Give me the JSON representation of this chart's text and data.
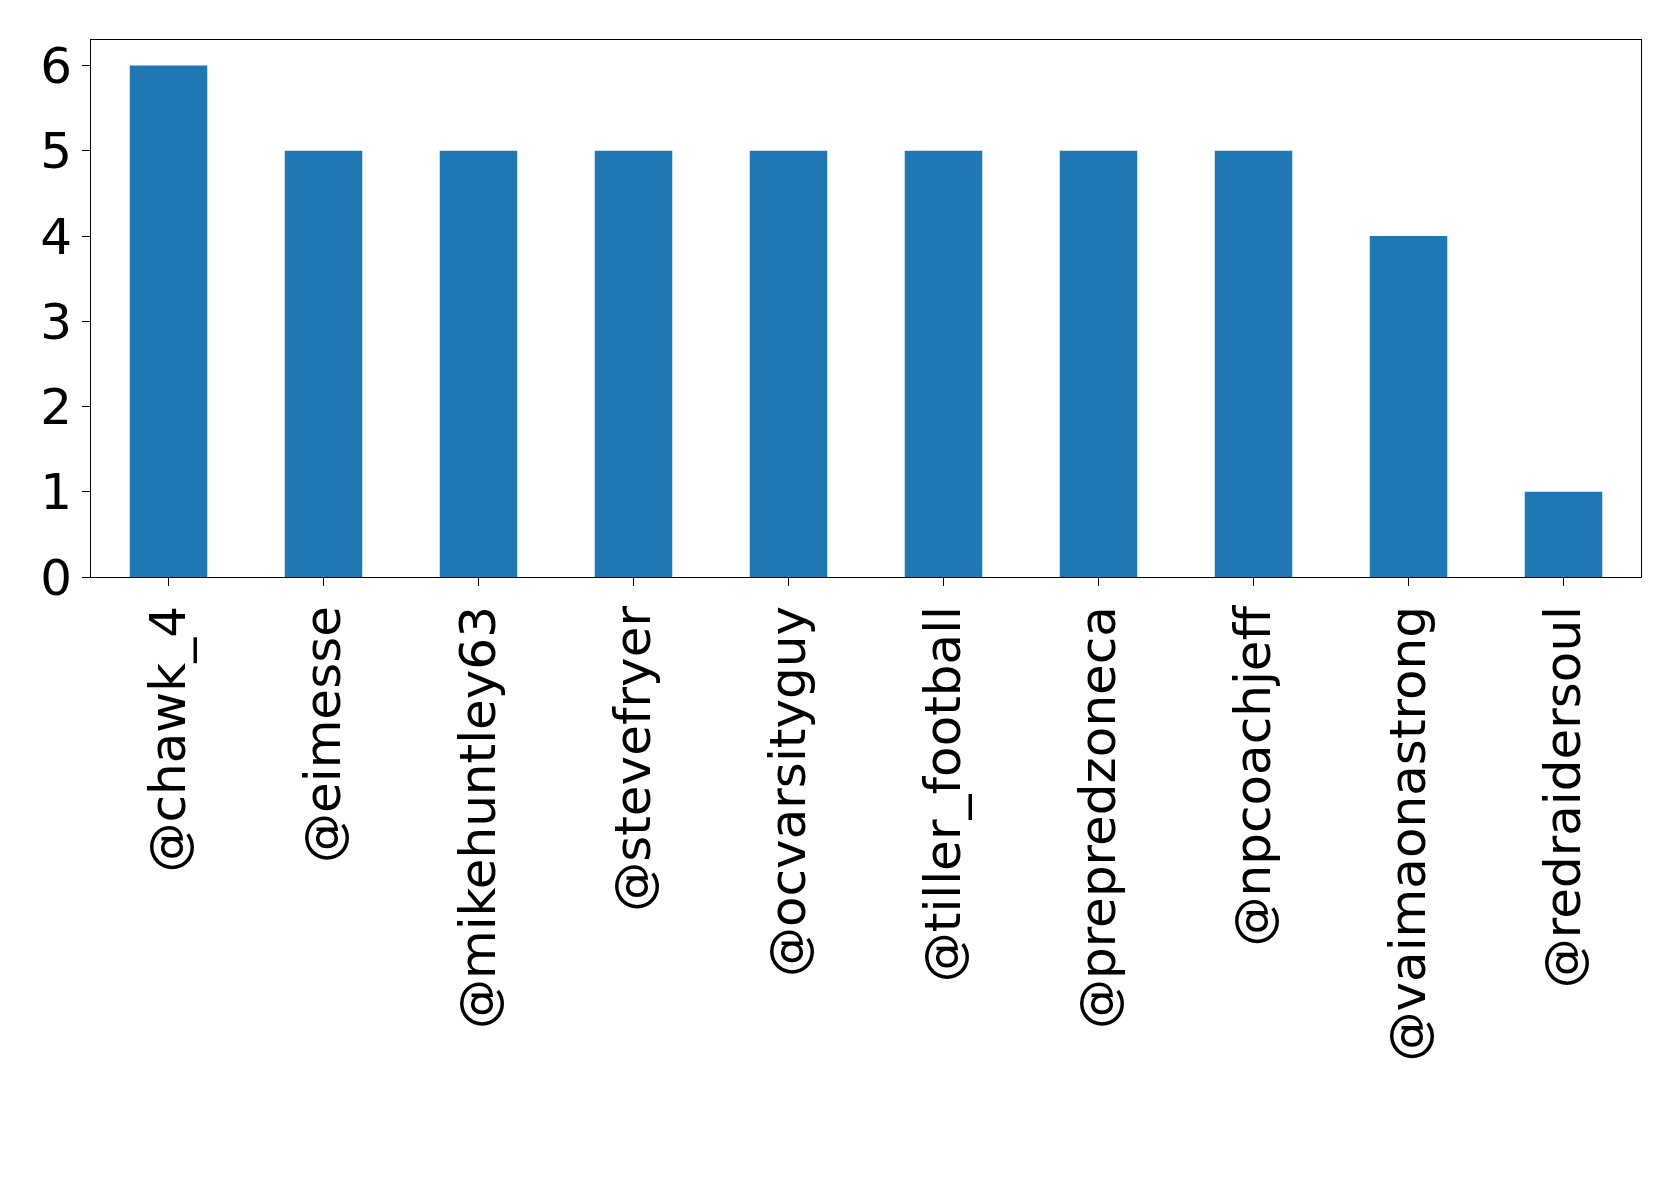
{
  "chart_data": {
    "type": "bar",
    "categories": [
      "@chawk_4",
      "@eimesse",
      "@mikehuntley63",
      "@stevefryer",
      "@ocvarsityguy",
      "@tiller_football",
      "@prepredzoneca",
      "@npcoachjeff",
      "@vaimaonastrong",
      "@redraidersoul"
    ],
    "values": [
      6,
      5,
      5,
      5,
      5,
      5,
      5,
      5,
      4,
      1
    ],
    "color": "#1f77b4",
    "ylim": [
      0,
      6.3
    ],
    "yticks": [
      0,
      1,
      2,
      3,
      4,
      5,
      6
    ]
  }
}
